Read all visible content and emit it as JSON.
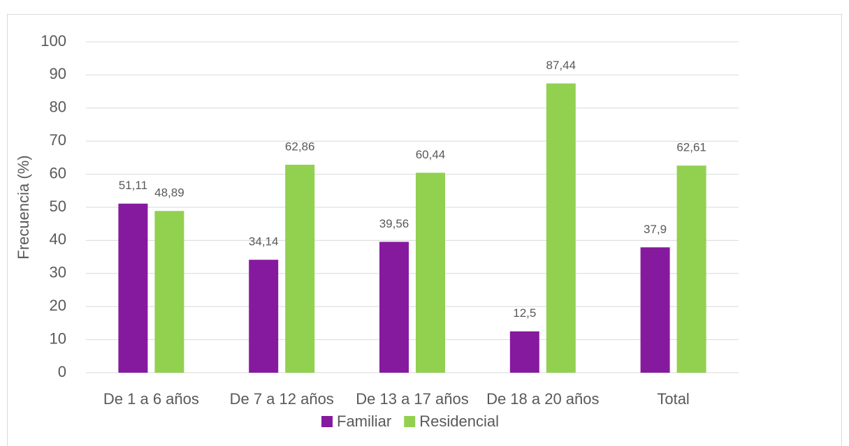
{
  "chart_data": {
    "type": "bar",
    "y_label": "Frecuencia (%)",
    "categories": [
      "De 1 a 6 años",
      "De 7 a 12 años",
      "De 13 a 17 años",
      "De 18 a 20 años",
      "Total"
    ],
    "series": [
      {
        "name": "Familiar",
        "color": "#861a9f",
        "values": [
          51.11,
          34.14,
          39.56,
          12.5,
          37.9
        ],
        "value_labels": [
          "51,11",
          "34,14",
          "39,56",
          "12,5",
          "37,9"
        ]
      },
      {
        "name": "Residencial",
        "color": "#92d050",
        "values": [
          48.89,
          62.86,
          60.44,
          87.44,
          62.61
        ],
        "value_labels": [
          "48,89",
          "62,86",
          "60,44",
          "87,44",
          "62,61"
        ]
      }
    ],
    "ylim": [
      0,
      100
    ],
    "yticks": [
      0,
      10,
      20,
      30,
      40,
      50,
      60,
      70,
      80,
      90,
      100
    ],
    "grid": true,
    "legend": "bottom"
  }
}
